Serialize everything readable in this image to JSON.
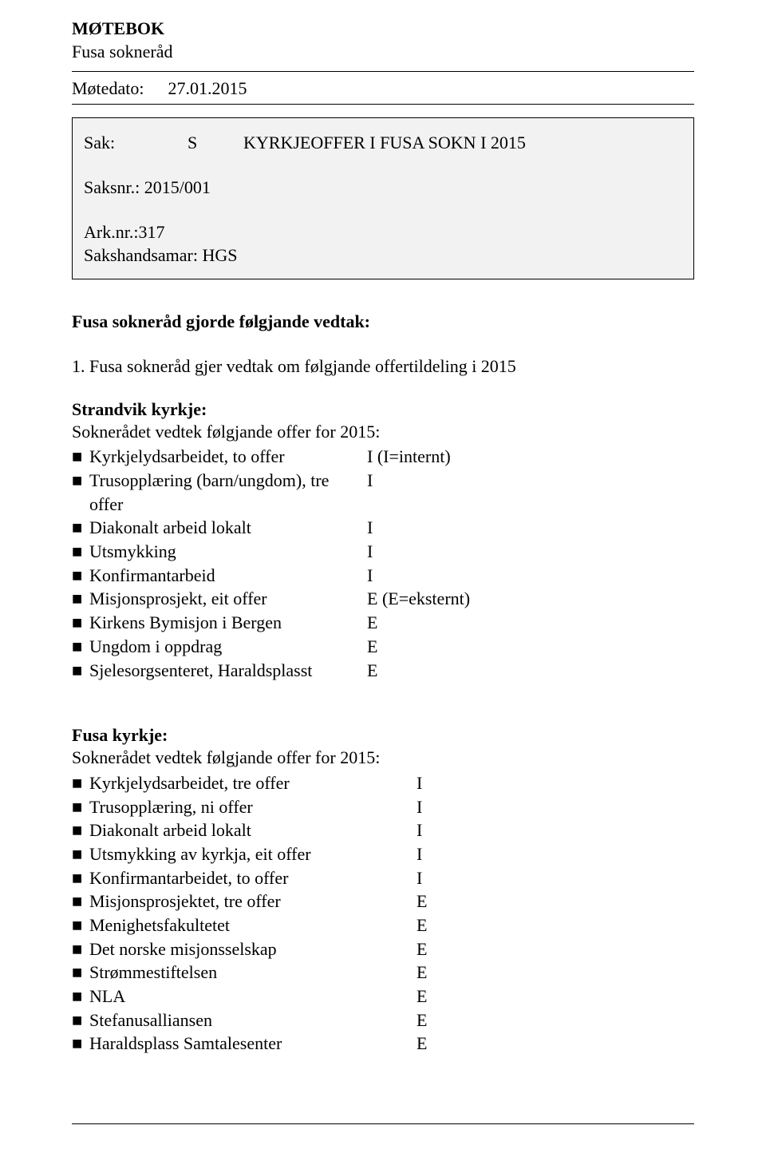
{
  "header": {
    "title": "MØTEBOK",
    "subtitle": "Fusa sokneråd"
  },
  "meeting": {
    "date_label": "Møtedato:",
    "date_value": "27.01.2015"
  },
  "casebox": {
    "sak_label": "Sak:",
    "sak_code": "S",
    "sak_title": "KYRKJEOFFER I FUSA SOKN I 2015",
    "saksnr_label": "Saksnr.:",
    "saksnr_value": "2015/001",
    "arknr_label": "Ark.nr.:",
    "arknr_value": "317",
    "handler_label": "Sakshandsamar:",
    "handler_value": "HGS"
  },
  "decision": {
    "heading": "Fusa sokneråd gjorde følgjande vedtak:",
    "intro": "1. Fusa sokneråd gjer vedtak om følgjande offertildeling i 2015"
  },
  "strandvik": {
    "title": "Strandvik kyrkje:",
    "subhead": "Soknerådet vedtek følgjande offer for 2015:",
    "items": [
      {
        "label": "Kyrkjelydsarbeidet, to offer",
        "code": "I (I=internt)"
      },
      {
        "label": "Trusopplæring (barn/ungdom), tre offer",
        "code": "I"
      },
      {
        "label": "Diakonalt arbeid lokalt",
        "code": "I"
      },
      {
        "label": "Utsmykking",
        "code": "I"
      },
      {
        "label": "Konfirmantarbeid",
        "code": "I"
      },
      {
        "label": "Misjonsprosjekt, eit offer",
        "code": "E (E=eksternt)"
      },
      {
        "label": "Kirkens Bymisjon i Bergen",
        "code": "E"
      },
      {
        "label": "Ungdom i oppdrag",
        "code": "E"
      },
      {
        "label": "Sjelesorgsenteret, Haraldsplasst",
        "code": "E"
      }
    ]
  },
  "fusa": {
    "title": "Fusa kyrkje:",
    "subhead": "Soknerådet vedtek følgjande offer for 2015:",
    "items": [
      {
        "label": "Kyrkjelydsarbeidet, tre offer",
        "code": "I"
      },
      {
        "label": "Trusopplæring, ni offer",
        "code": "I"
      },
      {
        "label": "Diakonalt arbeid lokalt",
        "code": "I"
      },
      {
        "label": "Utsmykking av kyrkja, eit offer",
        "code": "I"
      },
      {
        "label": "Konfirmantarbeidet, to offer",
        "code": "I"
      },
      {
        "label": "Misjonsprosjektet, tre offer",
        "code": "E"
      },
      {
        "label": "Menighetsfakultetet",
        "code": "E"
      },
      {
        "label": "Det norske misjonsselskap",
        "code": "E"
      },
      {
        "label": "Strømmestiftelsen",
        "code": "E"
      },
      {
        "label": "NLA",
        "code": "E"
      },
      {
        "label": "Stefanusalliansen",
        "code": "E"
      },
      {
        "label": "Haraldsplass Samtalesenter",
        "code": "E"
      }
    ]
  },
  "glyphs": {
    "bullet": "■"
  }
}
